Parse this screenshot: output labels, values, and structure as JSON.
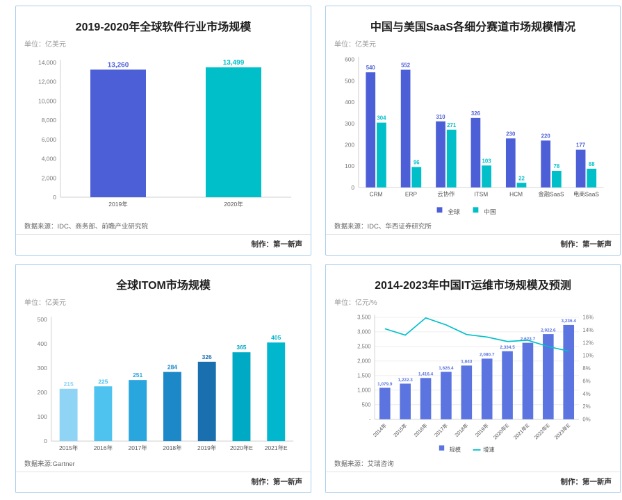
{
  "chart_data": [
    {
      "type": "bar",
      "title": "2019-2020年全球软件行业市场规模",
      "unit": "单位：亿美元",
      "categories": [
        "2019年",
        "2020年"
      ],
      "series": [
        {
          "name": "市场规模",
          "colors": [
            "#4d5fd6",
            "#00bfc9"
          ],
          "values": [
            13260,
            13499
          ],
          "labels": [
            "13,260",
            "13,499"
          ]
        }
      ],
      "ylim": [
        0,
        14000
      ],
      "ytick_values": [
        0,
        2000,
        4000,
        6000,
        8000,
        10000,
        12000,
        14000
      ],
      "ytick_labels": [
        "0",
        "2,000",
        "4,000",
        "6,000",
        "8,000",
        "10,000",
        "12,000",
        "14,000"
      ],
      "source": "数据来源：IDC、商务部、前瞻产业研究院",
      "maker": "制作：第一新声"
    },
    {
      "type": "grouped-bar",
      "title": "中国与美国SaaS各细分赛道市场规模情况",
      "unit": "单位：亿美元",
      "categories": [
        "CRM",
        "ERP",
        "云协作",
        "ITSM",
        "HCM",
        "金融SaaS",
        "电商SaaS"
      ],
      "series": [
        {
          "name": "全球",
          "color": "#4d5fd6",
          "values": [
            540,
            552,
            310,
            326,
            230,
            220,
            177
          ],
          "labels": [
            "540",
            "552",
            "310",
            "326",
            "230",
            "220",
            "177"
          ]
        },
        {
          "name": "中国",
          "color": "#00bfc9",
          "values": [
            304,
            96,
            271,
            103,
            22,
            78,
            88
          ],
          "labels": [
            "304",
            "96",
            "271",
            "103",
            "22",
            "78",
            "88"
          ]
        }
      ],
      "ylim": [
        0,
        600
      ],
      "ytick_values": [
        0,
        100,
        200,
        300,
        400,
        500,
        600
      ],
      "ytick_labels": [
        "0",
        "100",
        "200",
        "300",
        "400",
        "500",
        "600"
      ],
      "legend": [
        "全球",
        "中国"
      ],
      "source": "数据来源：IDC、华西证券研究所",
      "maker": "制作：第一新声"
    },
    {
      "type": "bar",
      "title": "全球ITOM市场规模",
      "unit": "单位：亿美元",
      "categories": [
        "2015年",
        "2016年",
        "2017年",
        "2018年",
        "2019年",
        "2020年E",
        "2021年E"
      ],
      "series": [
        {
          "name": "市场规模",
          "colors": [
            "#8fd4f5",
            "#4ec3ef",
            "#2aa6df",
            "#1d88c7",
            "#1a6fae",
            "#00a9c4",
            "#00b7cd"
          ],
          "values": [
            215,
            225,
            251,
            284,
            326,
            365,
            405
          ],
          "labels": [
            "215",
            "225",
            "251",
            "284",
            "326",
            "365",
            "405"
          ]
        }
      ],
      "ylim": [
        0,
        500
      ],
      "ytick_values": [
        0,
        100,
        200,
        300,
        400,
        500
      ],
      "ytick_labels": [
        "0",
        "100",
        "200",
        "300",
        "400",
        "500"
      ],
      "source": "数据来源:Gartner",
      "maker": "制作：第一新声"
    },
    {
      "type": "combo",
      "title": "2014-2023年中国IT运维市场规模及预测",
      "unit": "单位：亿元/%",
      "categories": [
        "2014年",
        "2015年",
        "2016年",
        "2017年",
        "2018年",
        "2019年",
        "2020年E",
        "2021年E",
        "2022年E",
        "2023年E"
      ],
      "series": [
        {
          "name": "规模",
          "color": "#5b74e0",
          "values": [
            1079.9,
            1222.3,
            1416.4,
            1626.4,
            1843,
            2080.7,
            2334.5,
            2623.7,
            2922.6,
            3236.4
          ],
          "labels": [
            "1,079.9",
            "1,222.3",
            "1,416.4",
            "1,626.4",
            "1,843",
            "2,080.7",
            "2,334.5",
            "2,623.7",
            "2,922.6",
            "3,236.4"
          ]
        }
      ],
      "line": {
        "name": "增速",
        "color": "#00bfc9",
        "values": [
          14.2,
          13.2,
          15.9,
          14.8,
          13.3,
          12.9,
          12.2,
          12.4,
          11.4,
          10.7
        ]
      },
      "ylim": [
        0,
        3500
      ],
      "ytick_values": [
        0,
        500,
        1000,
        1500,
        2000,
        2500,
        3000,
        3500
      ],
      "ytick_labels": [
        "-",
        "500",
        "1,000",
        "1,500",
        "2,000",
        "2,500",
        "3,000",
        "3,500"
      ],
      "y2lim": [
        0,
        16
      ],
      "y2tick_values": [
        0,
        2,
        4,
        6,
        8,
        10,
        12,
        14,
        16
      ],
      "y2tick_labels": [
        "0%",
        "2%",
        "4%",
        "6%",
        "8%",
        "10%",
        "12%",
        "14%",
        "16%"
      ],
      "legend": [
        "规模",
        "增速"
      ],
      "grid": true,
      "source": "数据来源：艾瑞咨询",
      "maker": "制作：第一新声"
    }
  ]
}
